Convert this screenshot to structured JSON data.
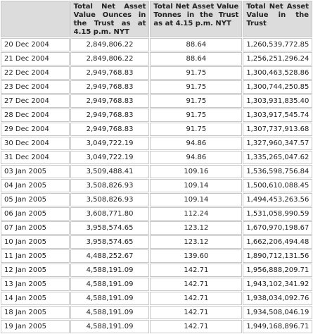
{
  "table": {
    "headers": [
      "Total Net Asset Value Ounces in the Trust as at 4.15 p.m. NYT",
      "Total Net Asset Value Tonnes in the Trust as at 4.15 p.m. NYT",
      "Total Net Asset Value in the Trust"
    ],
    "rows": [
      [
        "20 Dec 2004",
        "2,849,806.22",
        "88.64",
        "1,260,539,772.85"
      ],
      [
        "21 Dec 2004",
        "2,849,806.22",
        "88.64",
        "1,256,251,296.24"
      ],
      [
        "22 Dec 2004",
        "2,949,768.83",
        "91.75",
        "1,300,463,528.86"
      ],
      [
        "23 Dec 2004",
        "2,949,768.83",
        "91.75",
        "1,300,744,250.85"
      ],
      [
        "27 Dec 2004",
        "2,949,768.83",
        "91.75",
        "1,303,931,835.40"
      ],
      [
        "28 Dec 2004",
        "2,949,768.83",
        "91.75",
        "1,303,917,545.74"
      ],
      [
        "29 Dec 2004",
        "2,949,768.83",
        "91.75",
        "1,307,737,913.68"
      ],
      [
        "30 Dec 2004",
        "3,049,722.19",
        "94.86",
        "1,327,960,347.57"
      ],
      [
        "31 Dec 2004",
        "3,049,722.19",
        "94.86",
        "1,335,265,047.62"
      ],
      [
        "03 Jan 2005",
        "3,509,488.41",
        "109.16",
        "1,536,598,756.84"
      ],
      [
        "04 Jan 2005",
        "3,508,826.93",
        "109.14",
        "1,500,610,088.45"
      ],
      [
        "05 Jan 2005",
        "3,508,826.93",
        "109.14",
        "1,494,453,263.56"
      ],
      [
        "06 Jan 2005",
        "3,608,771.80",
        "112.24",
        "1,531,058,990.59"
      ],
      [
        "07 Jan 2005",
        "3,958,574.65",
        "123.12",
        "1,670,970,198.67"
      ],
      [
        "10 Jan 2005",
        "3,958,574.65",
        "123.12",
        "1,662,206,494.48"
      ],
      [
        "11 Jan 2005",
        "4,488,252.67",
        "139.60",
        "1,890,712,131.56"
      ],
      [
        "12 Jan 2005",
        "4,588,191.09",
        "142.71",
        "1,956,888,209.71"
      ],
      [
        "13 Jan 2005",
        "4,588,191.09",
        "142.71",
        "1,943,102,341.92"
      ],
      [
        "14 Jan 2005",
        "4,588,191.09",
        "142.71",
        "1,938,034,092.76"
      ],
      [
        "18 Jan 2005",
        "4,588,191.09",
        "142.71",
        "1,934,508,046.19"
      ],
      [
        "19 Jan 2005",
        "4,588,191.09",
        "142.71",
        "1,949,168,896.71"
      ]
    ]
  }
}
